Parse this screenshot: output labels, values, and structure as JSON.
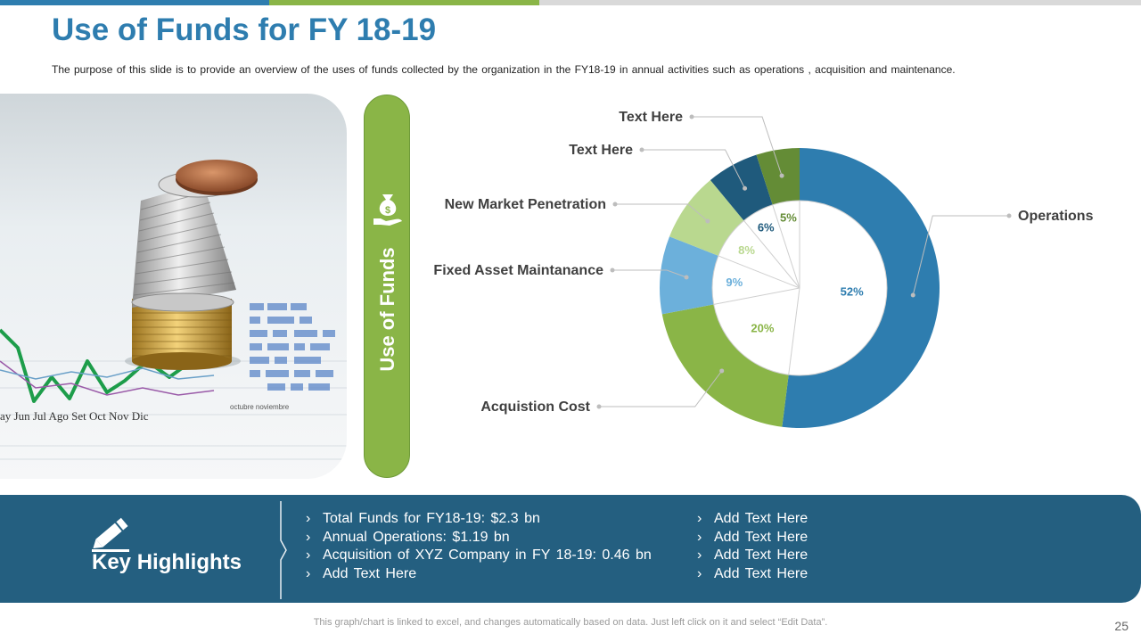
{
  "slide": {
    "title": "Use of Funds for FY 18-19",
    "subtitle": "The purpose of this slide is to provide  an overview  of the uses of funds collected by the organization in the FY18-19 in annual activities such as operations , acquisition and maintenance.",
    "page_number": "25",
    "footer_note": "This graph/chart is linked to excel, and changes automatically based on data. Just left click on it and select “Edit Data”.",
    "top_bar_colors": [
      "#2E7DAF",
      "#8AB547",
      "#D9D9D9"
    ]
  },
  "side_panel": {
    "label": "Use of Funds",
    "icon": "money-bag-hand-icon",
    "color": "#8AB547"
  },
  "photo": {
    "months": "ay Jun  Jul  Ago  Set  Oct  Nov  Dic",
    "axis_labels": "octubre      noviembre"
  },
  "chart_data": {
    "type": "pie",
    "variant": "donut",
    "slices": [
      {
        "label": "Operations",
        "value": 52,
        "display": "52%",
        "color": "#2E7DAF"
      },
      {
        "label": "Acquistion Cost",
        "value": 20,
        "display": "20%",
        "color": "#8AB547"
      },
      {
        "label": "Fixed Asset Maintanance",
        "value": 9,
        "display": "9%",
        "color": "#6CB0DB"
      },
      {
        "label": "New Market Penetration",
        "value": 8,
        "display": "8%",
        "color": "#B9D88F"
      },
      {
        "label": "Text Here",
        "value": 6,
        "display": "6%",
        "color": "#1F5A7C"
      },
      {
        "label": "Text Here",
        "value": 5,
        "display": "5%",
        "color": "#648C36"
      }
    ]
  },
  "highlights": {
    "title": "Key Highlights",
    "icon": "pencil-icon",
    "left": [
      "Total Funds  for FY18-19:  $2.3  bn",
      "Annual  Operations:  $1.19  bn",
      "Acquisition  of XYZ Company  in FY  18-19:  0.46  bn",
      "Add Text  Here"
    ],
    "right": [
      "Add Text  Here",
      "Add Text  Here",
      "Add Text  Here",
      "Add Text  Here"
    ],
    "bullet": "›"
  }
}
